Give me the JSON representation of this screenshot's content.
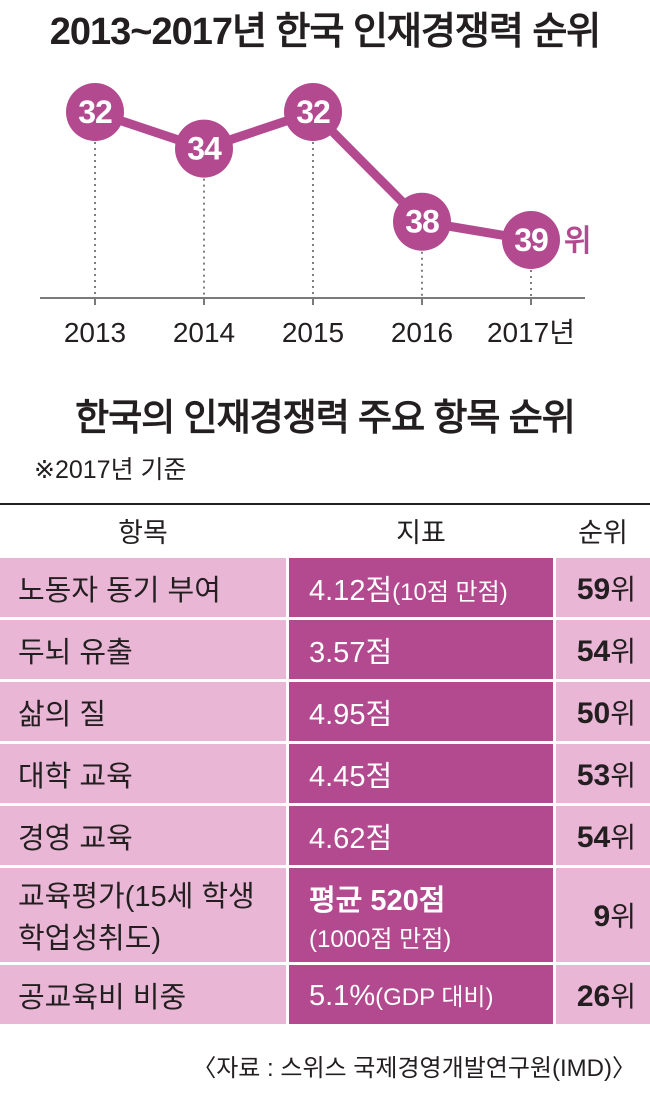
{
  "chart_title": "2013~2017년 한국 인재경쟁력 순위",
  "chart_data": {
    "type": "line",
    "title": "2013~2017년 한국 인재경쟁력 순위",
    "x": [
      "2013",
      "2014",
      "2015",
      "2016",
      "2017"
    ],
    "x_tick_labels": [
      "2013",
      "2014",
      "2015",
      "2016",
      "2017년"
    ],
    "series": [
      {
        "values": [
          32,
          34,
          32,
          38,
          39
        ]
      }
    ],
    "y_inverted": true,
    "last_value_suffix": "위",
    "colors": {
      "line": "#b34a8f",
      "marker": "#b34a8f",
      "marker_text": "#ffffff",
      "suffix": "#b34a8f"
    }
  },
  "table_title": "한국의 인재경쟁력 주요 항목 순위",
  "basis_note": "※2017년 기준",
  "table": {
    "headers": {
      "item": "항목",
      "indicator": "지표",
      "rank": "순위"
    },
    "rows": [
      {
        "item": "노동자 동기 부여",
        "ind_main": "4.12점",
        "ind_sub": "(10점 만점)",
        "rank": "59",
        "unit": "위"
      },
      {
        "item": "두뇌 유출",
        "ind_main": "3.57점",
        "ind_sub": "",
        "rank": "54",
        "unit": "위"
      },
      {
        "item": "삶의 질",
        "ind_main": "4.95점",
        "ind_sub": "",
        "rank": "50",
        "unit": "위"
      },
      {
        "item": "대학 교육",
        "ind_main": "4.45점",
        "ind_sub": "",
        "rank": "53",
        "unit": "위"
      },
      {
        "item": "경영 교육",
        "ind_main": "4.62점",
        "ind_sub": "",
        "rank": "54",
        "unit": "위"
      },
      {
        "item_line1": "교육평가(15세 학생",
        "item_line2": "학업성취도)",
        "ind_line1": "평균 520점",
        "ind_line2": "(1000점 만점)",
        "rank": "9",
        "unit": "위"
      },
      {
        "item": "공교육비 비중",
        "ind_main": "5.1%",
        "ind_sub": "(GDP 대비)",
        "rank": "26",
        "unit": "위"
      }
    ],
    "colors": {
      "light": "#e9b6d5",
      "dark": "#b34a8f"
    }
  },
  "source": "〈자료 :  스위스 국제경영개발연구원(IMD)〉"
}
